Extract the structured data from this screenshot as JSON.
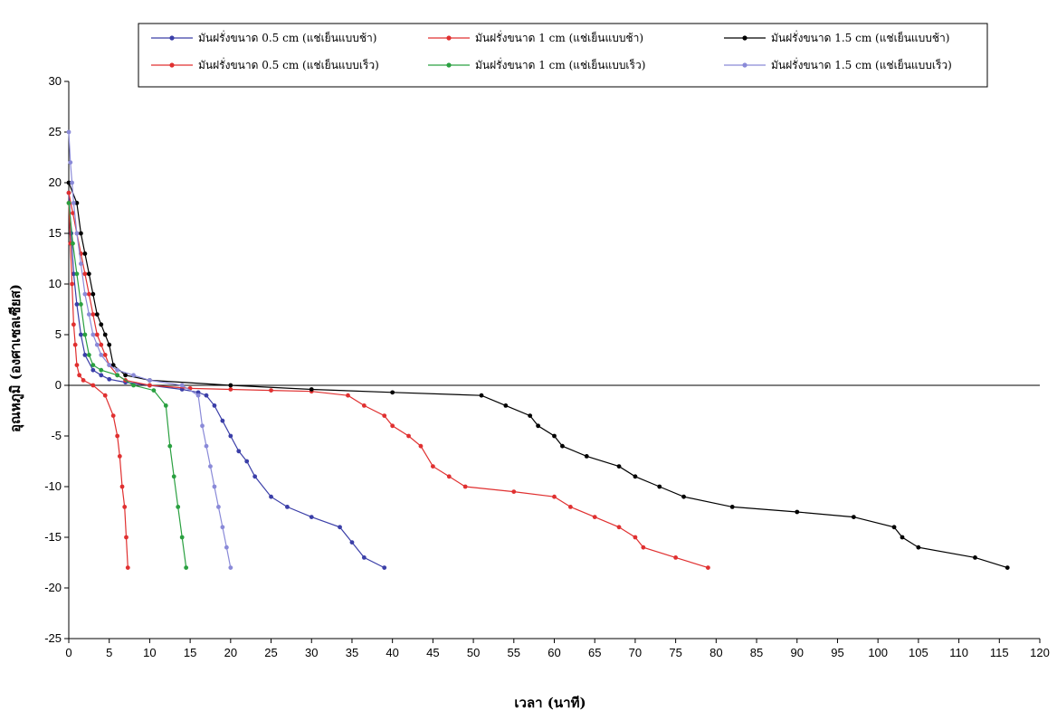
{
  "chart_data": {
    "type": "line",
    "xlabel": "เวลา (นาที)",
    "ylabel": "อุณหภูมิ (องศาเซลเซียส)",
    "xlim": [
      0,
      120
    ],
    "ylim": [
      -25,
      30
    ],
    "xticks": [
      0,
      5,
      10,
      15,
      20,
      25,
      30,
      35,
      40,
      45,
      50,
      55,
      60,
      65,
      70,
      75,
      80,
      85,
      90,
      95,
      100,
      105,
      110,
      115,
      120
    ],
    "yticks": [
      30,
      25,
      20,
      15,
      10,
      5,
      0,
      -5,
      -10,
      -15,
      -20,
      -25
    ],
    "grid": false,
    "legend_position": "top",
    "series": [
      {
        "name": "มันฝรั่งขนาด 0.5 cm (แช่เย็นแบบช้า)",
        "color": "#3b3fa8",
        "x": [
          0,
          0.3,
          0.6,
          1,
          1.5,
          2,
          3,
          4,
          5,
          7,
          10,
          14,
          16,
          17,
          18,
          19,
          20,
          21,
          22,
          23,
          25,
          27,
          30,
          33.5,
          35,
          36.5,
          39
        ],
        "y": [
          19,
          15,
          11,
          8,
          5,
          3,
          1.5,
          1,
          0.6,
          0.3,
          0,
          -0.4,
          -0.7,
          -1,
          -2,
          -3.5,
          -5,
          -6.5,
          -7.5,
          -9,
          -11,
          -12,
          -13,
          -14,
          -15.5,
          -17,
          -18
        ]
      },
      {
        "name": "มันฝรั่งขนาด 1 cm (แช่เย็นแบบช้า)",
        "color": "#e03030",
        "x": [
          0,
          0.5,
          1,
          1.5,
          2,
          2.5,
          3,
          3.5,
          4,
          4.5,
          5,
          6,
          7,
          10,
          15,
          20,
          25,
          30,
          34.5,
          36.5,
          39,
          40,
          42,
          43.5,
          45,
          47,
          49,
          55,
          60,
          62,
          65,
          68,
          70,
          71,
          75,
          79
        ],
        "y": [
          19,
          17,
          15,
          13,
          11,
          9,
          7,
          5,
          4,
          3,
          2,
          1,
          0.5,
          0,
          -0.3,
          -0.4,
          -0.5,
          -0.6,
          -1,
          -2,
          -3,
          -4,
          -5,
          -6,
          -8,
          -9,
          -10,
          -10.5,
          -11,
          -12,
          -13,
          -14,
          -15,
          -16,
          -17,
          -18
        ]
      },
      {
        "name": "มันฝรั่งขนาด 1.5 cm (แช่เย็นแบบช้า)",
        "color": "#000000",
        "x": [
          0,
          1,
          1.5,
          2,
          2.5,
          3,
          3.5,
          4,
          4.5,
          5,
          5.5,
          7,
          10,
          20,
          30,
          40,
          51,
          54,
          57,
          58,
          60,
          61,
          64,
          68,
          70,
          73,
          76,
          82,
          90,
          97,
          102,
          103,
          105,
          112,
          116
        ],
        "y": [
          20,
          18,
          15,
          13,
          11,
          9,
          7,
          6,
          5,
          4,
          2,
          1,
          0.5,
          0,
          -0.4,
          -0.7,
          -1,
          -2,
          -3,
          -4,
          -5,
          -6,
          -7,
          -8,
          -9,
          -10,
          -11,
          -12,
          -12.5,
          -13,
          -14,
          -15,
          -16,
          -17,
          -18
        ]
      },
      {
        "name": "มันฝรั่งขนาด 0.5 cm (แช่เย็นแบบเร็ว)",
        "color": "#e03030",
        "x": [
          0,
          0.2,
          0.4,
          0.6,
          0.8,
          1,
          1.3,
          1.8,
          3,
          4.5,
          5.5,
          6,
          6.3,
          6.6,
          6.9,
          7.1,
          7.3
        ],
        "y": [
          18,
          14,
          10,
          6,
          4,
          2,
          1,
          0.5,
          0,
          -1,
          -3,
          -5,
          -7,
          -10,
          -12,
          -15,
          -18
        ]
      },
      {
        "name": "มันฝรั่งขนาด 1 cm (แช่เย็นแบบเร็ว)",
        "color": "#2aa040",
        "x": [
          0,
          0.5,
          1,
          1.5,
          2,
          2.5,
          3,
          4,
          6,
          8,
          10.5,
          12,
          12.5,
          13,
          13.5,
          14,
          14.5
        ],
        "y": [
          18,
          14,
          11,
          8,
          5,
          3,
          2,
          1.5,
          1,
          0,
          -0.5,
          -2,
          -6,
          -9,
          -12,
          -15,
          -18
        ]
      },
      {
        "name": "มันฝรั่งขนาด 1.5 cm (แช่เย็นแบบเร็ว)",
        "color": "#8a8ad8",
        "x": [
          0,
          0.2,
          0.4,
          0.6,
          1,
          1.5,
          2,
          2.5,
          3,
          3.5,
          4,
          5,
          6,
          8,
          10,
          14,
          16,
          16.5,
          17,
          17.5,
          18,
          18.5,
          19,
          19.5,
          20
        ],
        "y": [
          25,
          22,
          20,
          18,
          15,
          12,
          9,
          7,
          5,
          4,
          3,
          2,
          1.5,
          1,
          0.5,
          0,
          -1,
          -4,
          -6,
          -8,
          -10,
          -12,
          -14,
          -16,
          -18
        ]
      }
    ]
  }
}
